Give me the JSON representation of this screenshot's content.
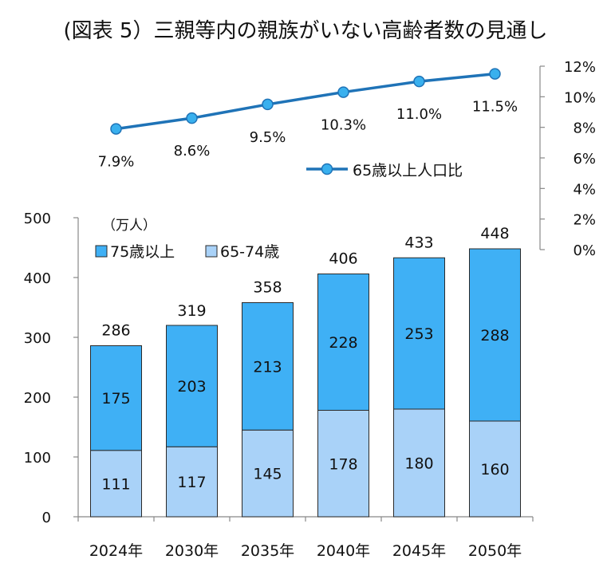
{
  "title": "(図表 5）三親等内の親族がいない高齢者数の見通し",
  "chart_data": [
    {
      "type": "line",
      "categories": [
        "2024年",
        "2030年",
        "2035年",
        "2040年",
        "2045年",
        "2050年"
      ],
      "series": [
        {
          "name": "65歳以上人口比",
          "values": [
            7.9,
            8.6,
            9.5,
            10.3,
            11.0,
            11.5
          ],
          "labels": [
            "7.9%",
            "8.6%",
            "9.5%",
            "10.3%",
            "11.0%",
            "11.5%"
          ]
        }
      ],
      "ylim": [
        0,
        12
      ],
      "yticks": [
        "0%",
        "2%",
        "4%",
        "6%",
        "8%",
        "10%",
        "12%"
      ],
      "legend": "center-right",
      "colors": {
        "line": "#1f73b7",
        "marker": "#39b0ee"
      }
    },
    {
      "type": "bar",
      "stacked": true,
      "unit_label": "（万人）",
      "categories": [
        "2024年",
        "2030年",
        "2035年",
        "2040年",
        "2045年",
        "2050年"
      ],
      "series": [
        {
          "name": "65-74歳",
          "values": [
            111,
            117,
            145,
            178,
            180,
            160
          ],
          "color": "#a9d2f8"
        },
        {
          "name": "75歳以上",
          "values": [
            175,
            203,
            213,
            228,
            253,
            288
          ],
          "color": "#3fb0f5"
        }
      ],
      "totals": [
        286,
        319,
        358,
        406,
        433,
        448
      ],
      "ylim": [
        0,
        500
      ],
      "yticks": [
        "0",
        "100",
        "200",
        "300",
        "400",
        "500"
      ],
      "legend": "top-left"
    }
  ]
}
